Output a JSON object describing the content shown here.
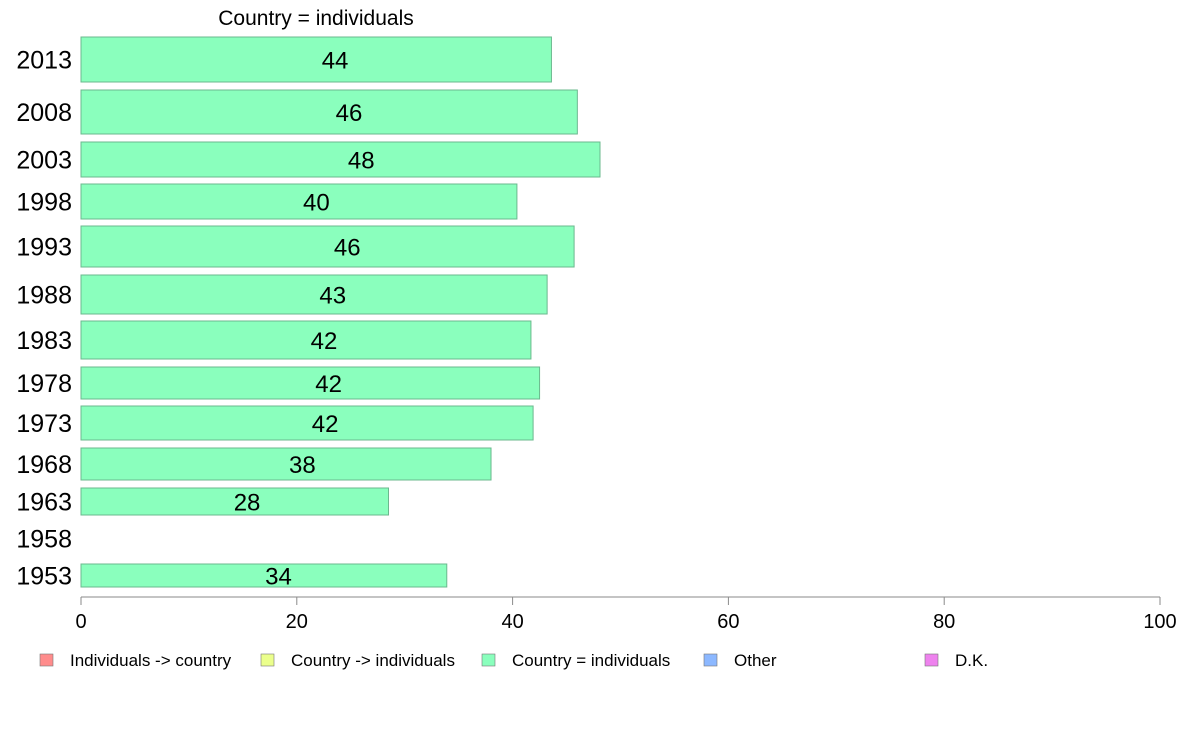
{
  "chart_data": {
    "type": "bar",
    "orientation": "horizontal",
    "title": "Country = individuals",
    "categories": [
      "2013",
      "2008",
      "2003",
      "1998",
      "1993",
      "1988",
      "1983",
      "1978",
      "1973",
      "1968",
      "1963",
      "1958",
      "1953"
    ],
    "values": [
      43.6,
      46.0,
      48.1,
      40.4,
      45.7,
      43.2,
      41.7,
      42.5,
      41.9,
      38.0,
      28.5,
      null,
      33.9
    ],
    "data_labels": [
      "44",
      "46",
      "48",
      "40",
      "46",
      "43",
      "42",
      "42",
      "42",
      "38",
      "28",
      "",
      "34"
    ],
    "xlim": [
      0,
      100
    ],
    "xticks": [
      "0",
      "20",
      "40",
      "60",
      "80",
      "100"
    ],
    "series_color": "#8affbd",
    "bar_edge_color": "#6bb88e",
    "grid": false,
    "legend": {
      "placement": "bottom",
      "items": [
        {
          "label": "Individuals -> country",
          "color": "#ff8c8c"
        },
        {
          "label": "Country -> individuals",
          "color": "#ebff8c"
        },
        {
          "label": "Country = individuals",
          "color": "#8affbd"
        },
        {
          "label": "Other",
          "color": "#8cb8ff"
        },
        {
          "label": "D.K.",
          "color": "#ee82ee"
        }
      ]
    }
  }
}
